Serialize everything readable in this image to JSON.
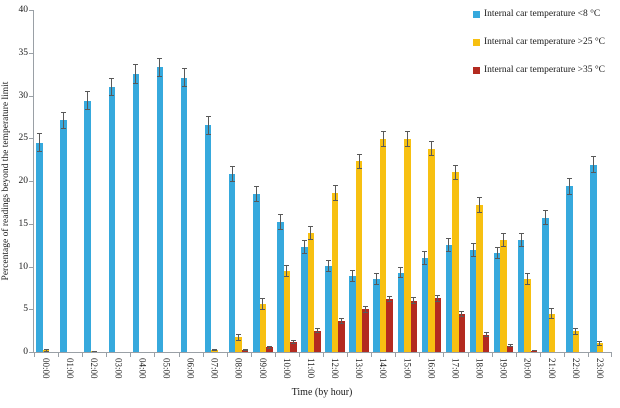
{
  "chart_data": {
    "type": "bar",
    "title": "",
    "xlabel": "Time (by hour)",
    "ylabel": "Percentage of readings beyond the temperature limit",
    "ylim": [
      0,
      40
    ],
    "yticks": [
      0,
      5,
      10,
      15,
      20,
      25,
      30,
      35,
      40
    ],
    "grid": false,
    "legend_position": "top-right",
    "error_bars": true,
    "axis_color": "#9aa0a6",
    "error_bar_color": "#595959",
    "categories": [
      "00:00",
      "01:00",
      "02:00",
      "03:00",
      "04:00",
      "05:00",
      "06:00",
      "07:00",
      "08:00",
      "09:00",
      "10:00",
      "11:00",
      "12:00",
      "13:00",
      "14:00",
      "15:00",
      "16:00",
      "17:00",
      "18:00",
      "19:00",
      "20:00",
      "21:00",
      "22:00",
      "23:00"
    ],
    "series": [
      {
        "name": "Internal car temperature <8 °C",
        "color": "#36A9DD",
        "values": [
          24.5,
          27.1,
          29.4,
          31.0,
          32.5,
          33.3,
          32.1,
          26.5,
          20.8,
          18.5,
          15.2,
          12.3,
          10.1,
          8.9,
          8.5,
          9.3,
          11.0,
          12.5,
          11.9,
          11.6,
          13.1,
          15.7,
          19.4,
          21.9
        ],
        "errors": [
          1.1,
          1.0,
          1.1,
          1.1,
          1.2,
          1.1,
          1.1,
          1.1,
          0.9,
          0.9,
          0.9,
          0.8,
          0.7,
          0.7,
          0.7,
          0.7,
          0.8,
          0.8,
          0.8,
          0.7,
          0.8,
          0.9,
          1.0,
          1.0
        ]
      },
      {
        "name": "Internal car temperature >25 °C",
        "color": "#F7C011",
        "values": [
          0.2,
          0,
          0.1,
          0,
          0,
          0,
          0,
          0.2,
          1.7,
          5.6,
          9.5,
          13.9,
          18.6,
          22.3,
          24.9,
          24.9,
          23.8,
          21.0,
          17.2,
          13.1,
          8.5,
          4.5,
          2.4,
          1.0
        ],
        "errors": [
          0.15,
          0,
          0.05,
          0,
          0,
          0,
          0,
          0.1,
          0.4,
          0.7,
          0.7,
          0.8,
          0.9,
          0.9,
          0.9,
          0.9,
          0.9,
          0.9,
          0.9,
          0.8,
          0.7,
          0.6,
          0.4,
          0.3
        ]
      },
      {
        "name": "Internal car temperature >35 °C",
        "color": "#B32A20",
        "values": [
          0,
          0,
          0,
          0,
          0,
          0,
          0,
          0,
          0.2,
          0.55,
          1.2,
          2.5,
          3.6,
          5.0,
          6.2,
          6.0,
          6.3,
          4.4,
          2.0,
          0.75,
          0.15,
          0,
          0,
          0
        ],
        "errors": [
          0,
          0,
          0,
          0,
          0,
          0,
          0,
          0,
          0.1,
          0.2,
          0.25,
          0.3,
          0.35,
          0.4,
          0.4,
          0.4,
          0.4,
          0.35,
          0.3,
          0.2,
          0.05,
          0,
          0,
          0
        ]
      }
    ]
  }
}
